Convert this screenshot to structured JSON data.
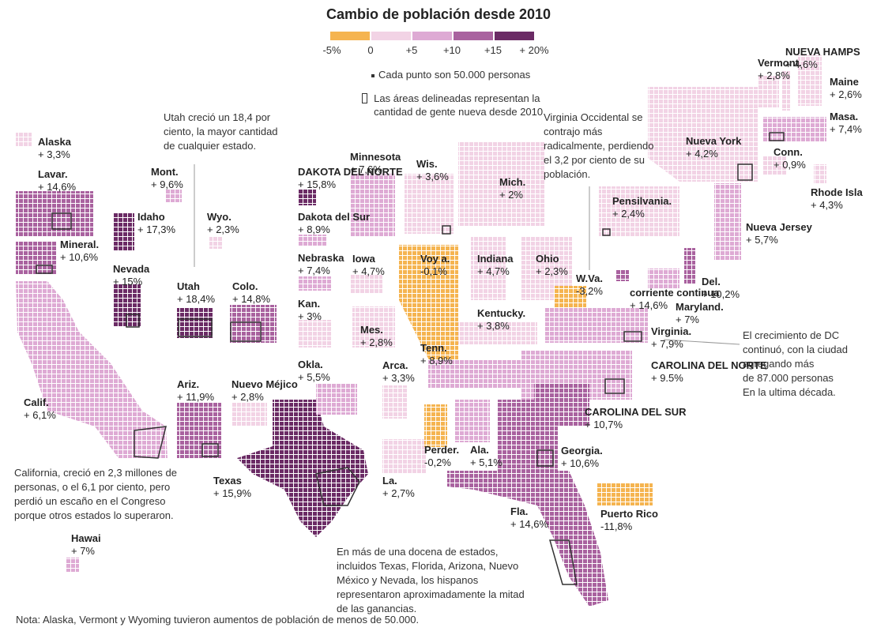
{
  "title": "Cambio de población desde 2010",
  "legend": {
    "colors": [
      "#f5b450",
      "#f2d3e5",
      "#deaad4",
      "#a9629f",
      "#6b2b65"
    ],
    "ticks": [
      "-5%",
      "0",
      "+5",
      "+10",
      "+15",
      "+ 20%"
    ]
  },
  "key": {
    "dot": "Cada punto son 50.000 personas",
    "outline": "Las áreas delineadas representan la cantidad de gente nueva desde 2010"
  },
  "annotations": {
    "utah": "Utah creció un 18,4 por ciento, la mayor cantidad de cualquier estado.",
    "wv": "Virginia Occidental se contrajo más radicalmente, perdiendo el 3,2 por ciento de su población.",
    "dc": [
      "El crecimiento de DC continuó, con la ciudad agregando más",
      "de 87.000 personas",
      "En la ultima década."
    ],
    "calif": "California, creció en 2,3 millones de personas, o el 6,1 por ciento, pero perdió un escaño en el Congreso porque otros estados lo superaron.",
    "hispanic": "En más de una docena de estados, incluidos Texas, Florida, Arizona, Nuevo México y Nevada, los hispanos representaron aproximadamente la mitad de las ganancias."
  },
  "footnote": "Nota: Alaska, Vermont y Wyoming tuvieron aumentos de población de menos de 50.000.",
  "states": [
    {
      "name": "Alaska",
      "value": "+ 3,3%",
      "change": 3.3
    },
    {
      "name": "Lavar.",
      "value": "+ 14,6%",
      "change": 14.6
    },
    {
      "name": "Mont.",
      "value": "+ 9,6%",
      "change": 9.6
    },
    {
      "name": "Idaho",
      "value": "+ 17,3%",
      "change": 17.3
    },
    {
      "name": "Wyo.",
      "value": "+ 2,3%",
      "change": 2.3
    },
    {
      "name": "Mineral.",
      "value": "+ 10,6%",
      "change": 10.6
    },
    {
      "name": "Nevada",
      "value": "+ 15%",
      "change": 15
    },
    {
      "name": "Utah",
      "value": "+ 18,4%",
      "change": 18.4
    },
    {
      "name": "Colo.",
      "value": "+ 14,8%",
      "change": 14.8
    },
    {
      "name": "Calif.",
      "value": "+ 6,1%",
      "change": 6.1
    },
    {
      "name": "Ariz.",
      "value": "+ 11,9%",
      "change": 11.9
    },
    {
      "name": "Nuevo Méjico",
      "value": "+ 2,8%",
      "change": 2.8
    },
    {
      "name": "Texas",
      "value": "+ 15,9%",
      "change": 15.9
    },
    {
      "name": "Hawai",
      "value": "+ 7%",
      "change": 7
    },
    {
      "name": "Minnesota",
      "value": "+ 7,6%",
      "change": 7.6
    },
    {
      "name": "DAKOTA DEL NORTE",
      "value": "+ 15,8%",
      "change": 15.8
    },
    {
      "name": "Dakota del Sur",
      "value": "+ 8,9%",
      "change": 8.9
    },
    {
      "name": "Nebraska",
      "value": "+ 7,4%",
      "change": 7.4
    },
    {
      "name": "Kan.",
      "value": "+ 3%",
      "change": 3
    },
    {
      "name": "Okla.",
      "value": "+ 5,5%",
      "change": 5.5
    },
    {
      "name": "Iowa",
      "value": "+ 4,7%",
      "change": 4.7
    },
    {
      "name": "Wis.",
      "value": "+ 3,6%",
      "change": 3.6
    },
    {
      "name": "Voy a.",
      "value": "-0,1%",
      "change": -0.1
    },
    {
      "name": "Mes.",
      "value": "+ 2,8%",
      "change": 2.8
    },
    {
      "name": "Arca.",
      "value": "+ 3,3%",
      "change": 3.3
    },
    {
      "name": "La.",
      "value": "+ 2,7%",
      "change": 2.7
    },
    {
      "name": "Perder.",
      "value": "-0,2%",
      "change": -0.2
    },
    {
      "name": "Ala.",
      "value": "+ 5,1%",
      "change": 5.1
    },
    {
      "name": "Tenn.",
      "value": "+ 8,9%",
      "change": 8.9
    },
    {
      "name": "Kentucky.",
      "value": "+ 3,8%",
      "change": 3.8
    },
    {
      "name": "Indiana",
      "value": "+ 4,7%",
      "change": 4.7
    },
    {
      "name": "Ohio",
      "value": "+ 2,3%",
      "change": 2.3
    },
    {
      "name": "Mich.",
      "value": "+ 2%",
      "change": 2
    },
    {
      "name": "W.Va.",
      "value": "-3,2%",
      "change": -3.2
    },
    {
      "name": "Pensilvania.",
      "value": "+ 2,4%",
      "change": 2.4
    },
    {
      "name": "Nueva York",
      "value": "+ 4,2%",
      "change": 4.2
    },
    {
      "name": "NUEVA HAMPS",
      "value": "+ 4,6%",
      "change": 4.6
    },
    {
      "name": "Vermont.",
      "value": "+ 2,8%",
      "change": 2.8
    },
    {
      "name": "Maine",
      "value": "+ 2,6%",
      "change": 2.6
    },
    {
      "name": "Masa.",
      "value": "+ 7,4%",
      "change": 7.4
    },
    {
      "name": "Conn.",
      "value": "+ 0,9%",
      "change": 0.9
    },
    {
      "name": "Rhode Isla",
      "value": "+ 4,3%",
      "change": 4.3
    },
    {
      "name": "Nueva Jersey",
      "value": "+ 5,7%",
      "change": 5.7
    },
    {
      "name": "Del.",
      "value": "+ 10,2%",
      "change": 10.2
    },
    {
      "name": "corriente continua",
      "value": "+ 14,6%",
      "change": 14.6
    },
    {
      "name": "Maryland.",
      "value": "+ 7%",
      "change": 7
    },
    {
      "name": "Virginia.",
      "value": "+ 7,9%",
      "change": 7.9
    },
    {
      "name": "CAROLINA DEL NORTE",
      "value": "+ 9.5%",
      "change": 9.5
    },
    {
      "name": "CAROLINA DEL SUR",
      "value": "+ 10,7%",
      "change": 10.7
    },
    {
      "name": "Georgia.",
      "value": "+ 10,6%",
      "change": 10.6
    },
    {
      "name": "Fla.",
      "value": "+ 14,6%",
      "change": 14.6
    },
    {
      "name": "Puerto Rico",
      "value": "-11,8%",
      "change": -11.8
    }
  ]
}
